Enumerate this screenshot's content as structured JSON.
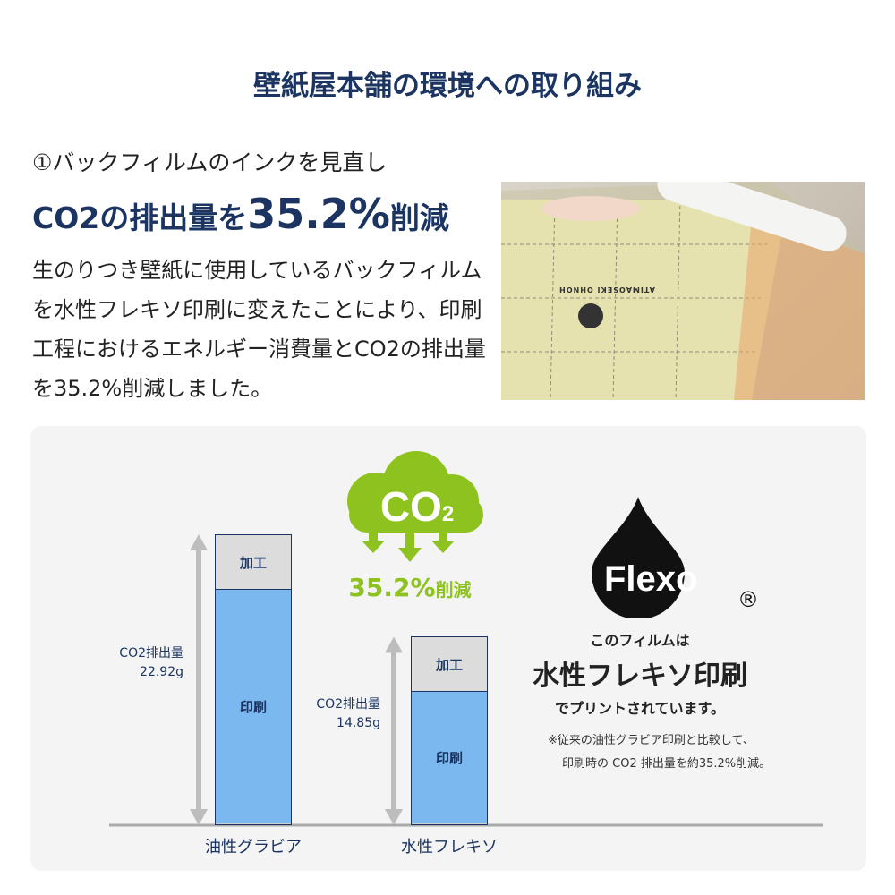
{
  "title": "壁紙屋本舗の環境への取り組み",
  "subheading": "①バックフィルムのインクを見直し",
  "headline": {
    "pre": "CO2の排出量を",
    "value": "35.2%",
    "post": "削減"
  },
  "body": "生のりつき壁紙に使用しているバックフィルムを水性フレキソ印刷に変えたことにより、印刷工程におけるエネルギー消費量とCO2の排出量を35.2%削減しました。",
  "photo": {
    "alt_print": "ATIMAOSEKI OHNOH"
  },
  "cloud": {
    "label": "CO",
    "sub": "2",
    "reduction": "35.2%",
    "reduction_suffix": "削減"
  },
  "chart_data": {
    "type": "bar",
    "stacked": true,
    "categories": [
      "油性グラビア",
      "水性フレキソ"
    ],
    "series": [
      {
        "name": "印刷",
        "values": [
          18.6,
          10.55
        ]
      },
      {
        "name": "加工",
        "values": [
          4.32,
          4.3
        ]
      }
    ],
    "totals": [
      22.92,
      14.85
    ],
    "total_labels": [
      {
        "label": "CO2排出量",
        "value": "22.92g"
      },
      {
        "label": "CO2排出量",
        "value": "14.85g"
      }
    ],
    "unit": "g",
    "colors": {
      "印刷": "#7cb8f0",
      "加工": "#dcdcdc"
    }
  },
  "flexo": {
    "logo": "Flexo",
    "registered": "®",
    "line1": "このフィルムは",
    "line2": "水性フレキソ印刷",
    "line3": "でプリントされています。",
    "note1": "※従来の油性グラビア印刷と比較して、",
    "note2": "印刷時の CO2 排出量を約35.2%削減。"
  },
  "colors": {
    "navy": "#1b3461",
    "green": "#8dc21f",
    "blue": "#7cb8f0"
  }
}
